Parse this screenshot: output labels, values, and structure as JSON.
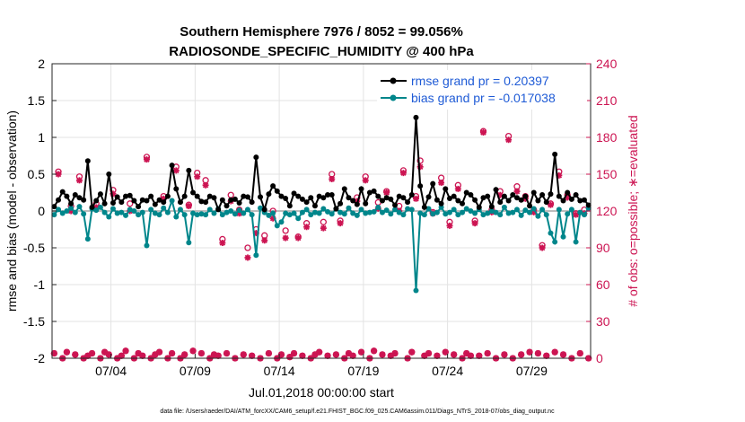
{
  "chart_data": {
    "type": "line",
    "title": "Southern Hemisphere 7976 / 8052 = 99.056%",
    "subtitle": "RADIOSONDE_SPECIFIC_HUMIDITY @ 400 hPa",
    "xlabel": "Jul.01,2018 00:00:00 start",
    "ylabel": "rmse and bias (model - observation)",
    "ylabel_right": "# of obs: o=possible; ∗=evaluated",
    "footnote": "data file: /Users/raeder/DAI/ATM_forcXX/CAM6_setup/f.e21.FHIST_BGC.f09_025.CAM6assim.011/Diags_NTrS_2018-07/obs_diag_output.nc",
    "xlim": [
      0.5,
      32.5
    ],
    "ylim": [
      -2,
      2
    ],
    "ylim_right": [
      0,
      240
    ],
    "y_ticks": [
      "-2",
      "-1.5",
      "-1",
      "-0.5",
      "0",
      "0.5",
      "1",
      "1.5",
      "2"
    ],
    "y_ticks_right": [
      "0",
      "30",
      "60",
      "90",
      "120",
      "150",
      "180",
      "210",
      "240"
    ],
    "x_ticks": [
      {
        "x": 4,
        "label": "07/04"
      },
      {
        "x": 9,
        "label": "07/09"
      },
      {
        "x": 14,
        "label": "07/14"
      },
      {
        "x": 19,
        "label": "07/19"
      },
      {
        "x": 24,
        "label": "07/24"
      },
      {
        "x": 29,
        "label": "07/29"
      }
    ],
    "grid": true,
    "legend_position": "top-right",
    "x": [
      0.625,
      0.875,
      1.125,
      1.375,
      1.625,
      1.875,
      2.125,
      2.375,
      2.625,
      2.875,
      3.125,
      3.375,
      3.625,
      3.875,
      4.125,
      4.375,
      4.625,
      4.875,
      5.125,
      5.375,
      5.625,
      5.875,
      6.125,
      6.375,
      6.625,
      6.875,
      7.125,
      7.375,
      7.625,
      7.875,
      8.125,
      8.375,
      8.625,
      8.875,
      9.125,
      9.375,
      9.625,
      9.875,
      10.125,
      10.375,
      10.625,
      10.875,
      11.125,
      11.375,
      11.625,
      11.875,
      12.125,
      12.375,
      12.625,
      12.875,
      13.125,
      13.375,
      13.625,
      13.875,
      14.125,
      14.375,
      14.625,
      14.875,
      15.125,
      15.375,
      15.625,
      15.875,
      16.125,
      16.375,
      16.625,
      16.875,
      17.125,
      17.375,
      17.625,
      17.875,
      18.125,
      18.375,
      18.625,
      18.875,
      19.125,
      19.375,
      19.625,
      19.875,
      20.125,
      20.375,
      20.625,
      20.875,
      21.125,
      21.375,
      21.625,
      21.875,
      22.125,
      22.375,
      22.625,
      22.875,
      23.125,
      23.375,
      23.625,
      23.875,
      24.125,
      24.375,
      24.625,
      24.875,
      25.125,
      25.375,
      25.625,
      25.875,
      26.125,
      26.375,
      26.625,
      26.875,
      27.125,
      27.375,
      27.625,
      27.875,
      28.125,
      28.375,
      28.625,
      28.875,
      29.125,
      29.375,
      29.625,
      29.875,
      30.125,
      30.375,
      30.625,
      30.875,
      31.125,
      31.375,
      31.625,
      31.875,
      32.125,
      32.375
    ],
    "series": [
      {
        "name": "rmse grand pr = 0.20397",
        "color": "#000000",
        "values": [
          0.06,
          0.15,
          0.26,
          0.2,
          0.1,
          0.22,
          0.18,
          0.15,
          0.68,
          0.05,
          0.14,
          0.23,
          0.1,
          0.5,
          0.11,
          0.19,
          0.12,
          0.2,
          0.21,
          0.14,
          0.06,
          0.15,
          0.14,
          0.2,
          0.09,
          0.15,
          0.12,
          0.2,
          0.62,
          0.3,
          0.12,
          0.2,
          0.55,
          0.25,
          0.2,
          0.13,
          0.12,
          0.2,
          0.18,
          0.02,
          0.15,
          0.07,
          0.15,
          0.16,
          0.11,
          0.2,
          0.19,
          0.12,
          0.73,
          0.19,
          0.02,
          0.23,
          0.34,
          0.27,
          0.2,
          0.17,
          0.07,
          0.24,
          0.2,
          0.16,
          0.12,
          0.18,
          0.07,
          0.2,
          0.18,
          0.22,
          0.22,
          0.03,
          0.1,
          0.3,
          0.18,
          0.14,
          0.09,
          0.3,
          0.1,
          0.25,
          0.27,
          0.2,
          0.14,
          0.18,
          0.16,
          0.08,
          0.2,
          0.18,
          0.12,
          0.22,
          1.27,
          0.34,
          0.05,
          0.19,
          0.37,
          0.15,
          0.1,
          0.3,
          0.17,
          0.2,
          0.14,
          0.1,
          0.25,
          0.22,
          0.15,
          0.05,
          0.18,
          0.2,
          0.06,
          0.29,
          0.12,
          0.2,
          0.14,
          0.22,
          0.18,
          0.15,
          0.2,
          0.07,
          0.25,
          0.14,
          0.22,
          0.12,
          0.23,
          0.77,
          0.2,
          0.14,
          0.25,
          0.16,
          0.22,
          0.14,
          0.15,
          0.08
        ]
      },
      {
        "name": "bias grand pr = -0.017038",
        "color": "#00868b",
        "values": [
          -0.05,
          0.02,
          -0.03,
          0.0,
          0.04,
          -0.02,
          0.06,
          -0.04,
          -0.38,
          0.03,
          0.01,
          0.05,
          -0.02,
          -0.08,
          0.03,
          -0.03,
          -0.02,
          -0.06,
          0.02,
          0.0,
          -0.05,
          -0.02,
          -0.47,
          0.02,
          -0.03,
          -0.05,
          0.04,
          -0.02,
          0.14,
          -0.08,
          0.02,
          -0.05,
          -0.43,
          -0.03,
          -0.05,
          -0.04,
          -0.05,
          0.02,
          -0.03,
          0.03,
          -0.05,
          -0.02,
          0.0,
          -0.04,
          0.01,
          -0.03,
          0.02,
          -0.05,
          -0.6,
          0.04,
          -0.02,
          -0.06,
          -0.03,
          -0.2,
          -0.15,
          -0.03,
          -0.05,
          -0.03,
          -0.1,
          -0.02,
          0.02,
          -0.05,
          -0.02,
          -0.03,
          0.03,
          -0.01,
          -0.04,
          0.03,
          -0.02,
          -0.04,
          0.04,
          -0.03,
          -0.06,
          0.02,
          -0.03,
          -0.02,
          -0.01,
          0.05,
          -0.02,
          0.01,
          -0.04,
          0.02,
          -0.02,
          -0.05,
          0.03,
          0.02,
          -1.08,
          -0.03,
          -0.05,
          0.03,
          -0.04,
          -0.02,
          0.05,
          -0.04,
          -0.02,
          0.02,
          -0.05,
          -0.02,
          0.03,
          0.0,
          -0.03,
          0.02,
          -0.05,
          -0.03,
          0.0,
          -0.02,
          -0.05,
          0.05,
          -0.03,
          -0.02,
          0.02,
          -0.06,
          0.01,
          -0.02,
          0.03,
          -0.07,
          0.02,
          -0.05,
          -0.3,
          -0.42,
          0.02,
          -0.35,
          -0.04,
          0.02,
          -0.42,
          -0.02,
          -0.05,
          0.04
        ]
      }
    ],
    "obs_series": [
      {
        "name": "possible",
        "marker": "o",
        "color": "#cc1452",
        "values": [
          4,
          152,
          0,
          5,
          124,
          3,
          148,
          0,
          2,
          4,
          126,
          0,
          5,
          3,
          137,
          0,
          2,
          6,
          126,
          0,
          4,
          2,
          164,
          0,
          3,
          5,
          132,
          0,
          4,
          156,
          0,
          3,
          125,
          6,
          151,
          4,
          145,
          0,
          3,
          2,
          97,
          4,
          133,
          0,
          121,
          3,
          90,
          2,
          105,
          0,
          100,
          4,
          120,
          0,
          3,
          104,
          1,
          4,
          99,
          2,
          110,
          0,
          3,
          5,
          111,
          2,
          150,
          3,
          112,
          0,
          4,
          2,
          131,
          5,
          148,
          0,
          6,
          127,
          3,
          136,
          2,
          4,
          124,
          153,
          0,
          5,
          132,
          161,
          2,
          4,
          119,
          2,
          147,
          5,
          111,
          3,
          141,
          0,
          4,
          2,
          112,
          2,
          185,
          4,
          121,
          0,
          136,
          3,
          181,
          0,
          140,
          3,
          132,
          5,
          121,
          4,
          92,
          2,
          126,
          5,
          152,
          3,
          133,
          0,
          118,
          4,
          121,
          0,
          3,
          2
        ]
      },
      {
        "name": "evaluated",
        "marker": "*",
        "color": "#cc1452",
        "values": [
          4,
          150,
          0,
          5,
          120,
          3,
          145,
          0,
          2,
          4,
          123,
          0,
          5,
          3,
          134,
          0,
          2,
          6,
          120,
          0,
          4,
          2,
          162,
          0,
          3,
          5,
          130,
          0,
          4,
          153,
          0,
          3,
          124,
          6,
          148,
          4,
          141,
          0,
          3,
          2,
          94,
          4,
          128,
          0,
          118,
          3,
          82,
          2,
          102,
          0,
          96,
          4,
          114,
          0,
          3,
          98,
          1,
          4,
          98,
          2,
          107,
          0,
          3,
          5,
          106,
          2,
          146,
          3,
          110,
          0,
          4,
          2,
          128,
          5,
          145,
          0,
          6,
          122,
          3,
          135,
          2,
          4,
          120,
          151,
          0,
          5,
          130,
          156,
          2,
          4,
          118,
          2,
          143,
          5,
          108,
          3,
          138,
          0,
          4,
          2,
          110,
          2,
          184,
          4,
          119,
          0,
          133,
          3,
          178,
          0,
          136,
          3,
          130,
          5,
          119,
          4,
          90,
          2,
          125,
          5,
          149,
          3,
          131,
          0,
          117,
          4,
          118,
          0,
          3,
          2
        ]
      }
    ]
  }
}
